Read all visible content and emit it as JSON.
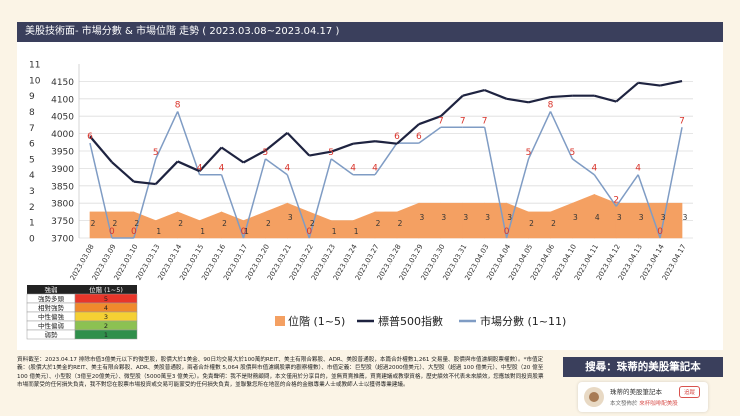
{
  "title": "美股技術面- 市場分數 & 市場位階 走勢 ( 2023.03.08~2023.04.17 )",
  "chart_data": {
    "type": "line",
    "dates": [
      "2023.03.08",
      "2023.03.09",
      "2023.03.10",
      "2023.03.13",
      "2023.03.14",
      "2023.03.15",
      "2023.03.16",
      "2023.03.17",
      "2023.03.20",
      "2023.03.21",
      "2023.03.22",
      "2023.03.23",
      "2023.03.24",
      "2023.03.27",
      "2023.03.28",
      "2023.03.29",
      "2023.03.30",
      "2023.03.31",
      "2023.04.03",
      "2023.04.04",
      "2023.04.05",
      "2023.04.06",
      "2023.04.10",
      "2023.04.11",
      "2023.04.12",
      "2023.04.13",
      "2023.04.14",
      "2023.04.17"
    ],
    "yticks": [
      "3700",
      "3750",
      "3800",
      "3850",
      "3900",
      "3950",
      "4000",
      "4050",
      "4100",
      "4150"
    ],
    "ylim": [
      3700,
      4200
    ],
    "score_ticks": [
      "0",
      "1",
      "2",
      "3",
      "4",
      "5",
      "6",
      "7",
      "8",
      "9",
      "10",
      "11"
    ],
    "score_lim": [
      0,
      11
    ],
    "series": [
      {
        "name": "位階 (1~5)",
        "type": "area",
        "color": "#f4a062",
        "values": [
          2,
          2,
          2,
          1,
          2,
          1,
          2,
          1,
          2,
          3,
          2,
          1,
          1,
          2,
          2,
          3,
          3,
          3,
          3,
          3,
          2,
          2,
          3,
          4,
          3,
          3,
          3,
          3
        ]
      },
      {
        "name": "標普500指數",
        "type": "line",
        "color": "#1e2340",
        "values": [
          3992,
          3918,
          3862,
          3855,
          3920,
          3892,
          3960,
          3917,
          3951,
          4002,
          3937,
          3948,
          3971,
          3978,
          3971,
          4027,
          4050,
          4109,
          4125,
          4100,
          4090,
          4105,
          4109,
          4109,
          4092,
          4146,
          4138,
          4151
        ]
      },
      {
        "name": "市場分數 (1~11)",
        "type": "line",
        "color": "#7f9cc4",
        "values": [
          6,
          0,
          0,
          5,
          8,
          4,
          4,
          0,
          5,
          4,
          0,
          5,
          4,
          4,
          6,
          6,
          7,
          7,
          7,
          0,
          5,
          8,
          5,
          4,
          2,
          4,
          0,
          7
        ]
      }
    ],
    "score_labels": [
      "6",
      "0",
      "0",
      "5",
      "8",
      "4",
      "4",
      "0",
      "5",
      "4",
      "0",
      "5",
      "4",
      "4",
      "6",
      "6",
      "7",
      "7",
      "7",
      "0",
      "5",
      "8",
      "5",
      "4",
      "2",
      "4",
      "0",
      "7"
    ],
    "rank_labels": [
      "2",
      "2",
      "2",
      "1",
      "2",
      "1",
      "2",
      "1",
      "2",
      "3",
      "2",
      "1",
      "1",
      "2",
      "2",
      "3",
      "3",
      "3",
      "3",
      "3",
      "2",
      "2",
      "3",
      "4",
      "3",
      "3",
      "3",
      "3"
    ],
    "legend": [
      "位階 (1~5)",
      "標普500指數",
      "市場分數 (1~11)"
    ]
  },
  "strength_table": {
    "headers": [
      "強弱",
      "位階 (1~5)"
    ],
    "rows": [
      {
        "label": "強勢多頭",
        "value": "5",
        "color": "#e8362a"
      },
      {
        "label": "相對強勢",
        "value": "4",
        "color": "#f08a2c"
      },
      {
        "label": "中性偏強",
        "value": "3",
        "color": "#f5d033"
      },
      {
        "label": "中性偏弱",
        "value": "2",
        "color": "#8cc152"
      },
      {
        "label": "弱勢",
        "value": "1",
        "color": "#2f8f4b"
      }
    ]
  },
  "footer_note": "資料截至：2023.04.17 排除市值3億美元以下的微型股，股價大於1美金、90日均交易大於100萬的REIT、美主有限合夥股、ADR、美股普通股，本篇合計權數1,261 交易量、股價與市值濾網股票權數）。*市值定義：(股價大於1美金的REIT、美主有限合夥股、ADR、美股普通股，兩者合計權數 5,064 股價與市值濾網股票的觀察權數）、市值定義：巨型股（超過2000億美元）、大型股（超過 100 億美元）、中型股（20 億至100 億美元）、小型股（3億至20億美元）、微型股（5000萬至3 億美元）。免責聲明：我不是財務顧問，本文僅用於分享目的，並無買賣推薦，買賣建議或教學資格，歷史績效不代表未來績效，您應該對同投資股票市場而蒙受的任何損失負責，我不對您在股票市場投資或交易可能蒙受的任何損失負責，並聯繫您所在地區的合格的金融專業人士或教師人士以獲得專業建議。",
  "search_label": "搜尋：珠蒂的美股筆記本",
  "card": {
    "name": "珠蒂的美股筆記本",
    "follow": "追蹤",
    "sub_prefix": "本文發佈於",
    "sub_link": "來杯咖啡配美股"
  }
}
